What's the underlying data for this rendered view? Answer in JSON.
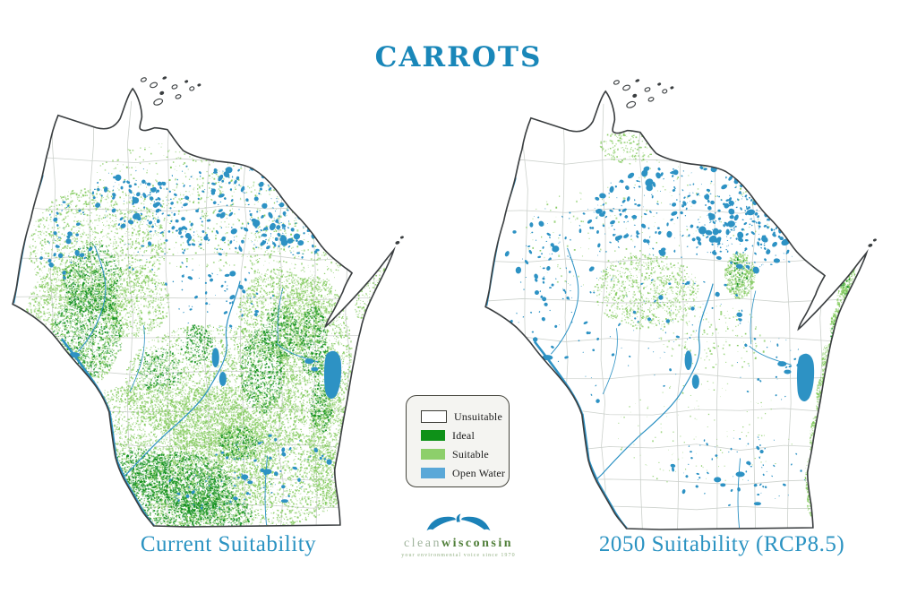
{
  "title": {
    "text": "CARROTS",
    "color": "#1987B9"
  },
  "maps": {
    "left": {
      "label": "Current Suitability"
    },
    "right": {
      "label": "2050 Suitability (RCP8.5)"
    }
  },
  "legend": {
    "items": [
      {
        "label": "Unsuitable",
        "color": "#FFFFFF",
        "outlined": true
      },
      {
        "label": "Ideal",
        "color": "#0E9118",
        "outlined": false
      },
      {
        "label": "Suitable",
        "color": "#8DCF6B",
        "outlined": false
      },
      {
        "label": "Open Water",
        "color": "#5AA8D8",
        "outlined": false
      }
    ]
  },
  "logo": {
    "brand_light": "clean",
    "brand_bold": "wisconsin",
    "tagline": "your environmental voice since 1970",
    "bird_color": "#1C82B8"
  },
  "palette": {
    "label_blue": "#2B93C2",
    "outline": "#3A3E40",
    "county": "#CCD1CC",
    "water": "#2D92C4",
    "ideal": "#108F1D",
    "suitable": "#85CB60"
  }
}
